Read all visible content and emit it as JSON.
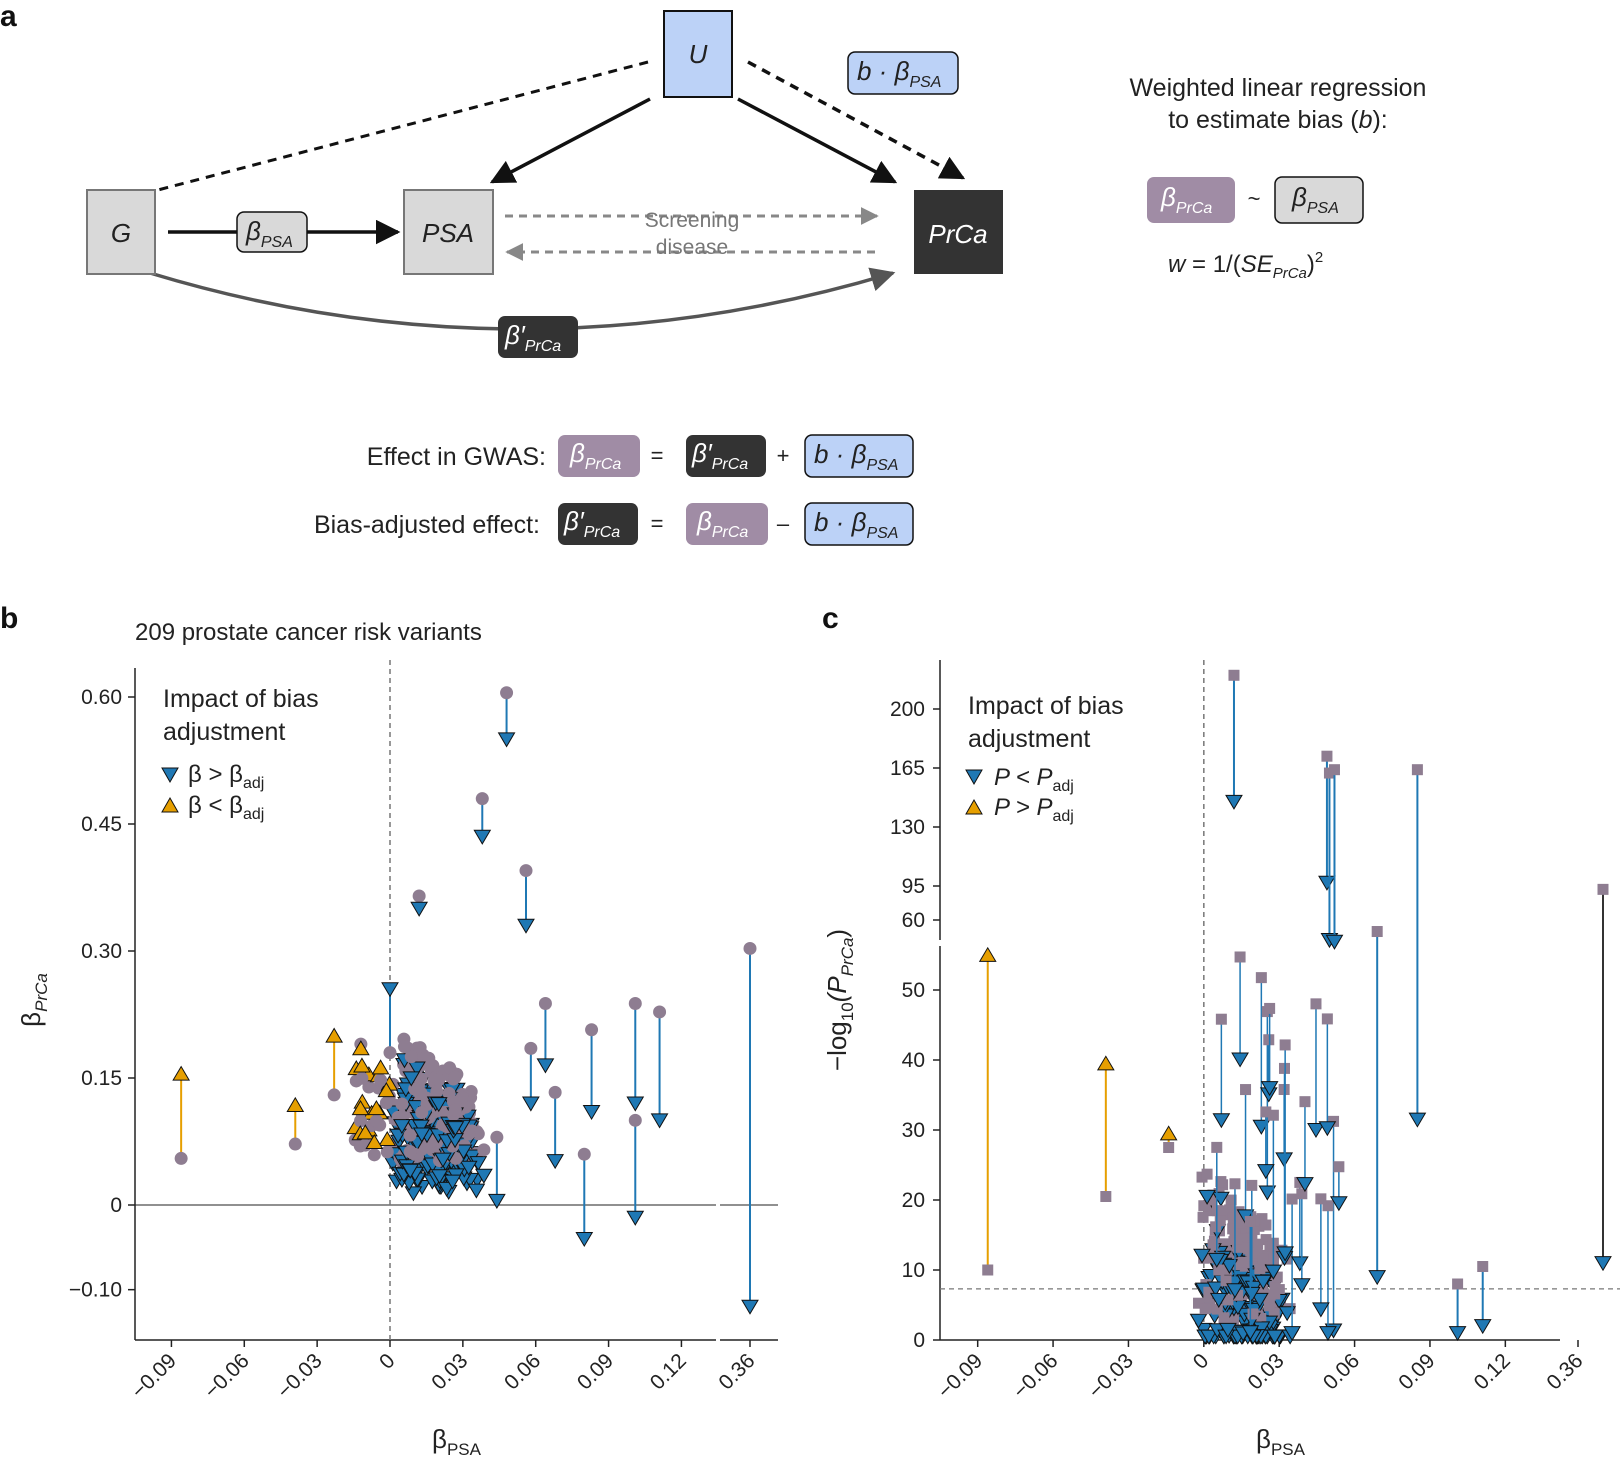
{
  "panel_a": {
    "letter": "a",
    "nodes": {
      "u": "U",
      "g": "G",
      "psa": "PSA",
      "prca": "PrCa"
    },
    "labels": {
      "b_dot": "b · ",
      "beta": "β",
      "sub_psa": "PSA",
      "sub_prca": "PrCa",
      "beta_prime": "β′",
      "screening": "Screening",
      "disease": "disease"
    },
    "regression_title_1": "Weighted linear regression",
    "regression_title_2": "to estimate bias (",
    "regression_b": "b",
    "regression_close": "):",
    "tilde": "~",
    "weight_prefix": "w",
    "weight_eq": " = 1/(",
    "weight_se": "SE",
    "weight_close": ")",
    "weight_sq": "2",
    "effect_gwas_label": "Effect in GWAS:",
    "bias_adjusted_label": "Bias-adjusted effect:",
    "op_eq": "=",
    "op_plus": "+",
    "op_minus": "–",
    "colors": {
      "u_box": "#bcd2f7",
      "prca_box": "#333333",
      "gray_box": "#d9d9d9",
      "purple_box": "#a08ca5"
    }
  },
  "panel_b": {
    "letter": "b",
    "subtitle": "209 prostate cancer risk variants"
  },
  "panel_c": {
    "letter": "c"
  },
  "chart_data": [
    {
      "type": "scatter",
      "title": "209 prostate cancer risk variants",
      "xlabel": "β",
      "xlabel_sub": "PSA",
      "ylabel": "β",
      "ylabel_sub": "PrCa",
      "legend_title_1": "Impact of bias",
      "legend_title_2": "adjustment",
      "legend": [
        {
          "label": "β > β",
          "sub": "adj",
          "color": "#1f78b4",
          "marker": "triangle-down"
        },
        {
          "label": "β < β",
          "sub": "adj",
          "color": "#e69f00",
          "marker": "triangle-up"
        }
      ],
      "xticks": [
        "−0.09",
        "−0.06",
        "−0.03",
        "0",
        "0.03",
        "0.06",
        "0.09",
        "0.12"
      ],
      "xticks_broken": [
        "0.36"
      ],
      "yticks": [
        "0.60",
        "0.45",
        "0.30",
        "0.15",
        "0",
        "−0.10"
      ],
      "xlim": [
        -0.105,
        0.133
      ],
      "ylim": [
        -0.16,
        0.66
      ],
      "colors": {
        "unadjusted": "#8e7d91",
        "decrease": "#1f78b4",
        "increase": "#e69f00"
      },
      "highlighted_points": [
        {
          "x": -0.086,
          "y": 0.055,
          "y_adj": 0.155,
          "dir": "up"
        },
        {
          "x": -0.039,
          "y": 0.072,
          "y_adj": 0.118,
          "dir": "up"
        },
        {
          "x": -0.023,
          "y": 0.13,
          "y_adj": 0.2,
          "dir": "up"
        },
        {
          "x": -0.012,
          "y": 0.19,
          "y_adj": 0.185,
          "dir": "up"
        },
        {
          "x": 0.048,
          "y": 0.605,
          "y_adj": 0.55,
          "dir": "down"
        },
        {
          "x": 0.038,
          "y": 0.48,
          "y_adj": 0.435,
          "dir": "down"
        },
        {
          "x": 0.056,
          "y": 0.395,
          "y_adj": 0.33,
          "dir": "down"
        },
        {
          "x": 0.012,
          "y": 0.365,
          "y_adj": 0.35,
          "dir": "down"
        },
        {
          "x": 0.064,
          "y": 0.238,
          "y_adj": 0.165,
          "dir": "down"
        },
        {
          "x": 0.083,
          "y": 0.207,
          "y_adj": 0.11,
          "dir": "down"
        },
        {
          "x": 0.08,
          "y": 0.06,
          "y_adj": -0.04,
          "dir": "down"
        },
        {
          "x": 0.101,
          "y": 0.238,
          "y_adj": 0.12,
          "dir": "down"
        },
        {
          "x": 0.101,
          "y": 0.1,
          "y_adj": -0.015,
          "dir": "down"
        },
        {
          "x": 0.111,
          "y": 0.228,
          "y_adj": 0.1,
          "dir": "down"
        },
        {
          "x": 0.068,
          "y": 0.133,
          "y_adj": 0.052,
          "dir": "down"
        },
        {
          "x": 0.058,
          "y": 0.185,
          "y_adj": 0.12,
          "dir": "down"
        },
        {
          "x": 0.044,
          "y": 0.08,
          "y_adj": 0.005,
          "dir": "down"
        },
        {
          "x": 0.0,
          "y": 0.18,
          "y_adj": 0.255,
          "dir": "down"
        }
      ],
      "broken_axis_point": {
        "x": 0.36,
        "y": 0.303,
        "y_adj": -0.12
      }
    },
    {
      "type": "scatter",
      "xlabel": "β",
      "xlabel_sub": "PSA",
      "ylabel": "−log",
      "ylabel_sub": "10",
      "ylabel_rest": "(P",
      "ylabel_sub2": "PrCa",
      "ylabel_close": ")",
      "legend_title_1": "Impact of bias",
      "legend_title_2": "adjustment",
      "legend": [
        {
          "label": "P < P",
          "sub": "adj",
          "color": "#1f78b4",
          "marker": "triangle-down"
        },
        {
          "label": "P > P",
          "sub": "adj",
          "color": "#e69f00",
          "marker": "triangle-up"
        }
      ],
      "xticks": [
        "−0.09",
        "−0.06",
        "−0.03",
        "0",
        "0.03",
        "0.06",
        "0.09",
        "0.12"
      ],
      "xticks_broken": [
        "0.36"
      ],
      "yticks_lower": [
        "50",
        "40",
        "30",
        "20",
        "10",
        "0"
      ],
      "yticks_upper": [
        "200",
        "165",
        "130",
        "95",
        "60"
      ],
      "significance_threshold": 7.3,
      "xlim": [
        -0.105,
        0.133
      ],
      "highlighted_points": [
        {
          "x": -0.086,
          "y": 10,
          "y_adj": 55,
          "dir": "up"
        },
        {
          "x": -0.039,
          "y": 20.5,
          "y_adj": 39.5,
          "dir": "up"
        },
        {
          "x": -0.014,
          "y": 27.5,
          "y_adj": 29.5,
          "dir": "up"
        },
        {
          "x": 0.012,
          "y": 220,
          "y_adj": 145,
          "dir": "down"
        },
        {
          "x": 0.049,
          "y": 172,
          "y_adj": 97,
          "dir": "down"
        },
        {
          "x": 0.05,
          "y": 162,
          "y_adj": 63,
          "dir": "down"
        },
        {
          "x": 0.052,
          "y": 164,
          "y_adj": 62,
          "dir": "down"
        },
        {
          "x": 0.085,
          "y": 164,
          "y_adj": 31.5,
          "dir": "down"
        },
        {
          "x": 0.069,
          "y": 68,
          "y_adj": 9,
          "dir": "down"
        },
        {
          "x": 0.101,
          "y": 8,
          "y_adj": 1,
          "dir": "down"
        },
        {
          "x": 0.111,
          "y": 10.5,
          "y_adj": 2,
          "dir": "down"
        }
      ],
      "broken_axis_point": {
        "x": 0.36,
        "y": 93,
        "y_adj": 11
      }
    }
  ]
}
